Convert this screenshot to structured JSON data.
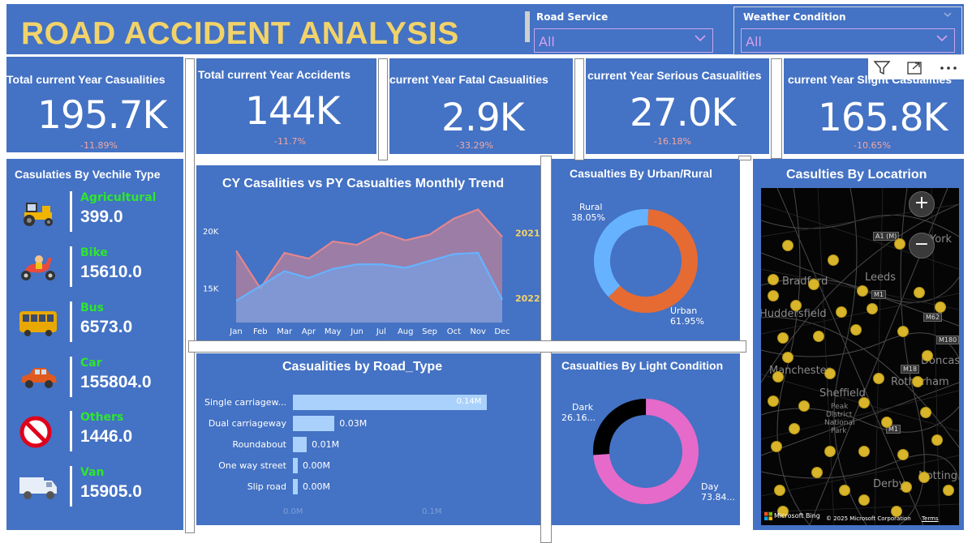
{
  "header": {
    "title": "ROAD ACCIDENT ANALYSIS"
  },
  "slicers": [
    {
      "label": "Road Service",
      "value": "All"
    },
    {
      "label": "Weather Condition",
      "value": "All"
    }
  ],
  "kpis": [
    {
      "label": "Total current Year Casualities",
      "value": "195.7K",
      "delta": "-11.89%"
    },
    {
      "label": "Total current Year Accidents",
      "value": "144K",
      "delta": "-11.7%"
    },
    {
      "label": "current Year Fatal Casualities",
      "value": "2.9K",
      "delta": "-33.29%"
    },
    {
      "label": "current Year Serious Casualities",
      "value": "27.0K",
      "delta": "-16.18%"
    },
    {
      "label": "current Year Slight Casualities",
      "value": "165.8K",
      "delta": "-10.65%"
    }
  ],
  "vehicles": {
    "title": "Casulaties By Vechile Type",
    "items": [
      {
        "name": "Agricultural",
        "value": "399.0",
        "icon": "tractor-icon"
      },
      {
        "name": "Bike",
        "value": "15610.0",
        "icon": "scooter-icon"
      },
      {
        "name": "Bus",
        "value": "6573.0",
        "icon": "bus-icon"
      },
      {
        "name": "Car",
        "value": "155804.0",
        "icon": "car-icon"
      },
      {
        "name": "Others",
        "value": "1446.0",
        "icon": "prohibited-icon"
      },
      {
        "name": "Van",
        "value": "15905.0",
        "icon": "van-icon"
      }
    ]
  },
  "chart_data": [
    {
      "type": "area",
      "title": "CY Casalities vs PY Casualties Monthly Trend",
      "categories": [
        "Jan",
        "Feb",
        "Mar",
        "Apr",
        "May",
        "Jun",
        "Jul",
        "Aug",
        "Sep",
        "Oct",
        "Nov",
        "Dec"
      ],
      "yticks": [
        "20K",
        "15K"
      ],
      "ylim": [
        12000,
        22500
      ],
      "series": [
        {
          "name": "2021",
          "values": [
            18300,
            15000,
            18100,
            17600,
            19100,
            18800,
            19900,
            19200,
            19700,
            21100,
            21900,
            19500
          ],
          "color": "#e3868e"
        },
        {
          "name": "2022",
          "values": [
            13900,
            15200,
            16500,
            15900,
            16700,
            17100,
            17100,
            16800,
            17400,
            18000,
            18100,
            14000
          ],
          "color": "#66b2ff"
        }
      ]
    },
    {
      "type": "bar",
      "orientation": "horizontal",
      "title": "Casualities by Road_Type",
      "categories": [
        "Single carriagew...",
        "Dual carriageway",
        "Roundabout",
        "One way street",
        "Slip road"
      ],
      "values": [
        0.14,
        0.03,
        0.01,
        0.0,
        0.0
      ],
      "labels": [
        "0.14M",
        "0.03M",
        "0.01M",
        "0.00M",
        "0.00M"
      ],
      "xticks": [
        "0.0M",
        "0.1M"
      ],
      "xlim": [
        0,
        0.145
      ]
    },
    {
      "type": "pie",
      "title": "Casualties By Urban/Rural",
      "slices": [
        {
          "name": "Rural",
          "pct": "38.05%",
          "value": 38.05,
          "color": "#66b2ff"
        },
        {
          "name": "Urban",
          "pct": "61.95%",
          "value": 61.95,
          "color": "#e56b33"
        }
      ]
    },
    {
      "type": "pie",
      "title": "Casualties By Light Condition",
      "slices": [
        {
          "name": "Dark",
          "pct": "26.16...",
          "value": 26.16,
          "color": "#000000"
        },
        {
          "name": "Day",
          "pct": "73.84...",
          "value": 73.84,
          "color": "#e66ac9"
        }
      ]
    }
  ],
  "map": {
    "title": "Casulties By Locatrion",
    "cities": [
      "York",
      "Bradford",
      "Leeds",
      "Huddersfield",
      "Manchester",
      "Sheffield",
      "Rotherham",
      "Doncas",
      "Peak",
      "District",
      "National",
      "Park",
      "Derby",
      "Notting"
    ],
    "roads": [
      "A1 (M)",
      "M1",
      "M62",
      "M180",
      "M18",
      "M1"
    ],
    "bing_label": "Microsoft Bing",
    "copyright": "© 2025 Microsoft Corporation",
    "terms": "Terms"
  },
  "colors": {
    "panel": "#4472c4",
    "title": "#f2d369",
    "accent_green": "#2ee62e",
    "delta": "#f4a7a0"
  }
}
